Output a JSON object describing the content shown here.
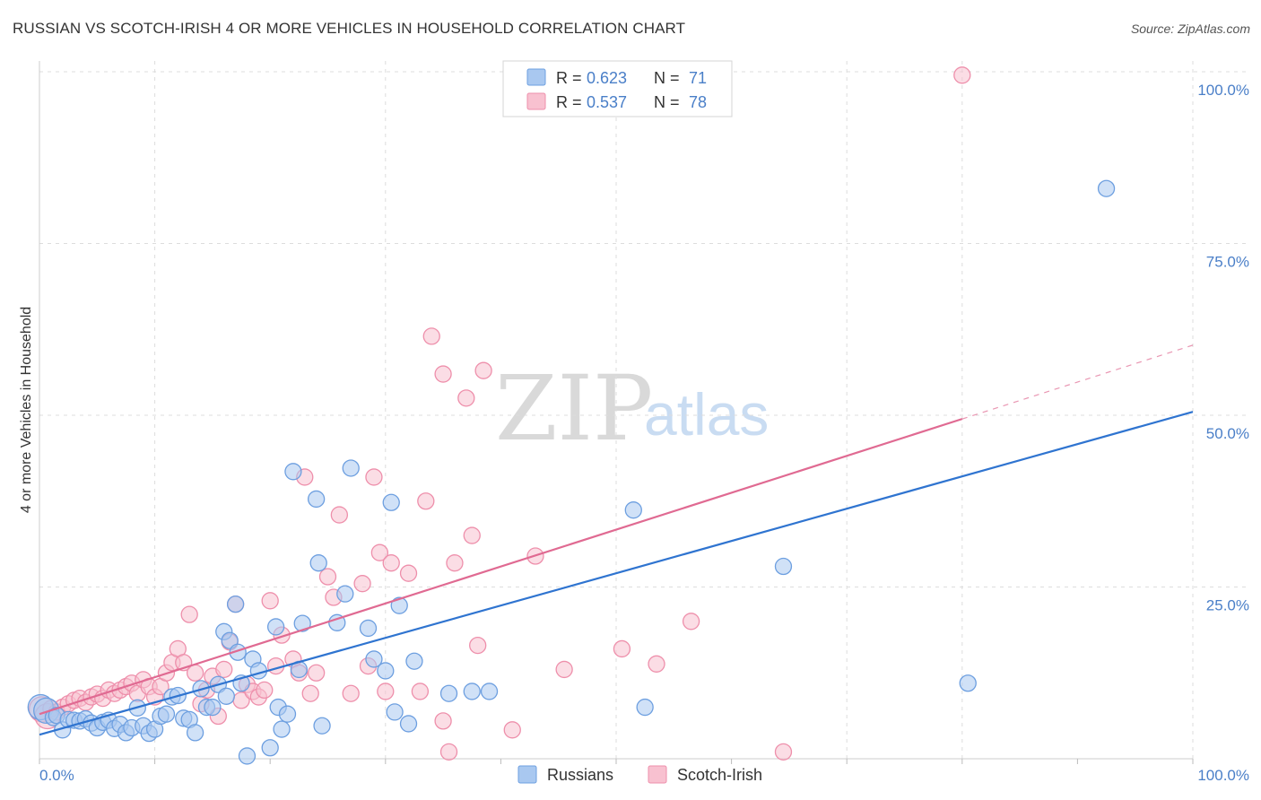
{
  "title": "RUSSIAN VS SCOTCH-IRISH 4 OR MORE VEHICLES IN HOUSEHOLD CORRELATION CHART",
  "source": "Source: ZipAtlas.com",
  "watermark": {
    "zip": "ZIP",
    "atlas": "atlas"
  },
  "colors": {
    "russians_fill": "#a9c8f0",
    "russians_stroke": "#6d9fe0",
    "russians_line": "#2f74d0",
    "scotch_fill": "#f8c1d0",
    "scotch_stroke": "#ee8fab",
    "scotch_line": "#e06a92",
    "grid": "#dddddd",
    "tick_text": "#4a7fc8"
  },
  "legend": {
    "rows": [
      {
        "r_label": "R = ",
        "r_value": "0.623",
        "n_label": "N = ",
        "n_value": "71"
      },
      {
        "r_label": "R = ",
        "r_value": "0.537",
        "n_label": "N = ",
        "n_value": "78"
      }
    ]
  },
  "chart_data": {
    "type": "scatter",
    "title": "RUSSIAN VS SCOTCH-IRISH 4 OR MORE VEHICLES IN HOUSEHOLD CORRELATION CHART",
    "xlabel": "",
    "ylabel": "4 or more Vehicles in Household",
    "xlim": [
      0,
      100
    ],
    "ylim": [
      0,
      100
    ],
    "x_tick_labels": [
      "0.0%",
      "100.0%"
    ],
    "y_ticks": [
      25,
      50,
      75,
      100
    ],
    "y_tick_labels": [
      "25.0%",
      "50.0%",
      "75.0%",
      "100.0%"
    ],
    "grid": true,
    "legend_position": "bottom",
    "series": [
      {
        "name": "Russians",
        "r": 0.623,
        "n": 71,
        "trend": {
          "x0": 0,
          "y0": 3.5,
          "x1": 100,
          "y1": 50.5,
          "dash_from": 100
        },
        "points": [
          [
            0.1,
            7.5
          ],
          [
            0.6,
            7.0
          ],
          [
            1.2,
            6.0
          ],
          [
            1.5,
            6.3
          ],
          [
            2.0,
            4.2
          ],
          [
            2.5,
            5.7
          ],
          [
            3.0,
            5.6
          ],
          [
            3.5,
            5.5
          ],
          [
            4.0,
            5.8
          ],
          [
            4.5,
            5.2
          ],
          [
            5.0,
            4.5
          ],
          [
            5.5,
            5.3
          ],
          [
            6.0,
            5.6
          ],
          [
            6.5,
            4.4
          ],
          [
            7.0,
            5.0
          ],
          [
            7.5,
            3.8
          ],
          [
            8.0,
            4.5
          ],
          [
            8.5,
            7.4
          ],
          [
            9.0,
            4.8
          ],
          [
            9.5,
            3.7
          ],
          [
            10.0,
            4.3
          ],
          [
            10.5,
            6.2
          ],
          [
            11.0,
            6.5
          ],
          [
            11.5,
            9.0
          ],
          [
            12.0,
            9.2
          ],
          [
            12.5,
            5.9
          ],
          [
            13.0,
            5.7
          ],
          [
            13.5,
            3.8
          ],
          [
            14.0,
            10.2
          ],
          [
            14.5,
            7.5
          ],
          [
            15.0,
            7.5
          ],
          [
            15.5,
            10.8
          ],
          [
            16.0,
            18.5
          ],
          [
            16.2,
            9.1
          ],
          [
            16.5,
            17.2
          ],
          [
            17.0,
            22.5
          ],
          [
            17.2,
            15.5
          ],
          [
            17.5,
            11.0
          ],
          [
            18.0,
            0.4
          ],
          [
            18.5,
            14.5
          ],
          [
            19.0,
            12.8
          ],
          [
            20.0,
            1.6
          ],
          [
            20.5,
            19.2
          ],
          [
            20.7,
            7.5
          ],
          [
            21.0,
            4.3
          ],
          [
            21.5,
            6.5
          ],
          [
            22.0,
            41.8
          ],
          [
            22.5,
            13.0
          ],
          [
            22.8,
            19.7
          ],
          [
            24.0,
            37.8
          ],
          [
            24.2,
            28.5
          ],
          [
            24.5,
            4.8
          ],
          [
            25.8,
            19.8
          ],
          [
            26.5,
            24.0
          ],
          [
            27.0,
            42.3
          ],
          [
            28.5,
            19.0
          ],
          [
            29.0,
            14.5
          ],
          [
            30.0,
            12.8
          ],
          [
            30.5,
            37.3
          ],
          [
            30.8,
            6.8
          ],
          [
            31.2,
            22.3
          ],
          [
            32.0,
            5.1
          ],
          [
            32.5,
            14.2
          ],
          [
            35.5,
            9.5
          ],
          [
            37.5,
            9.8
          ],
          [
            39.0,
            9.8
          ],
          [
            51.5,
            36.2
          ],
          [
            52.5,
            7.5
          ],
          [
            64.5,
            28.0
          ],
          [
            80.5,
            11.0
          ],
          [
            92.5,
            83.0
          ]
        ]
      },
      {
        "name": "Scotch-Irish",
        "r": 0.537,
        "n": 78,
        "trend": {
          "x0": 0,
          "y0": 6.5,
          "x1": 100,
          "y1": 60.2,
          "dash_from": 80
        },
        "points": [
          [
            0.2,
            7.2
          ],
          [
            0.7,
            6.2
          ],
          [
            1.0,
            7.3
          ],
          [
            1.5,
            6.8
          ],
          [
            2.0,
            7.5
          ],
          [
            2.5,
            8.0
          ],
          [
            3.0,
            8.5
          ],
          [
            3.5,
            8.8
          ],
          [
            4.0,
            8.2
          ],
          [
            4.5,
            9.0
          ],
          [
            5.0,
            9.4
          ],
          [
            5.5,
            8.8
          ],
          [
            6.0,
            10.0
          ],
          [
            6.5,
            9.5
          ],
          [
            7.0,
            10.0
          ],
          [
            7.5,
            10.5
          ],
          [
            8.0,
            11.0
          ],
          [
            8.5,
            9.5
          ],
          [
            9.0,
            11.5
          ],
          [
            9.5,
            10.5
          ],
          [
            10.0,
            9.0
          ],
          [
            10.5,
            10.5
          ],
          [
            11.0,
            12.5
          ],
          [
            11.5,
            14.0
          ],
          [
            12.0,
            16.0
          ],
          [
            12.5,
            14.0
          ],
          [
            13.0,
            21.0
          ],
          [
            13.5,
            12.5
          ],
          [
            14.0,
            8.0
          ],
          [
            14.5,
            10.0
          ],
          [
            15.0,
            12.0
          ],
          [
            15.5,
            6.2
          ],
          [
            16.0,
            13.0
          ],
          [
            16.5,
            17.0
          ],
          [
            17.0,
            22.5
          ],
          [
            17.5,
            8.5
          ],
          [
            18.0,
            10.8
          ],
          [
            18.5,
            9.8
          ],
          [
            19.0,
            9.0
          ],
          [
            19.5,
            10.0
          ],
          [
            20.0,
            23.0
          ],
          [
            20.5,
            13.5
          ],
          [
            21.0,
            18.0
          ],
          [
            22.0,
            14.5
          ],
          [
            22.5,
            12.5
          ],
          [
            23.0,
            41.0
          ],
          [
            23.5,
            9.5
          ],
          [
            24.0,
            12.5
          ],
          [
            25.0,
            26.5
          ],
          [
            25.5,
            23.5
          ],
          [
            26.0,
            35.5
          ],
          [
            27.0,
            9.5
          ],
          [
            28.0,
            25.5
          ],
          [
            28.5,
            13.5
          ],
          [
            29.0,
            41.0
          ],
          [
            29.5,
            30.0
          ],
          [
            30.0,
            9.8
          ],
          [
            30.5,
            28.5
          ],
          [
            32.0,
            27.0
          ],
          [
            33.5,
            37.5
          ],
          [
            34.0,
            61.5
          ],
          [
            35.0,
            56.0
          ],
          [
            35.5,
            1.0
          ],
          [
            36.0,
            28.5
          ],
          [
            37.0,
            52.5
          ],
          [
            37.5,
            32.5
          ],
          [
            38.0,
            16.5
          ],
          [
            38.5,
            56.5
          ],
          [
            41.0,
            4.2
          ],
          [
            43.0,
            29.5
          ],
          [
            45.5,
            13.0
          ],
          [
            50.5,
            16.0
          ],
          [
            53.5,
            13.8
          ],
          [
            56.5,
            20.0
          ],
          [
            64.5,
            1.0
          ],
          [
            80.0,
            99.5
          ],
          [
            35.0,
            5.5
          ],
          [
            33.0,
            9.8
          ]
        ]
      }
    ]
  },
  "bottom_legend": [
    {
      "label": "Russians",
      "series": "russians"
    },
    {
      "label": "Scotch-Irish",
      "series": "scotch"
    }
  ]
}
